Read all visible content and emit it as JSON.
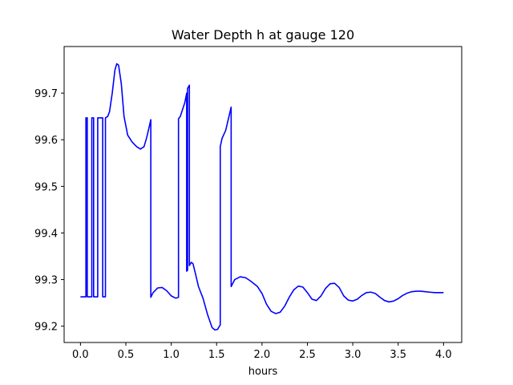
{
  "chart_data": {
    "type": "line",
    "title": "Water Depth h at gauge 120",
    "xlabel": "hours",
    "ylabel": "",
    "xlim": [
      -0.18,
      4.2
    ],
    "ylim": [
      99.165,
      99.8
    ],
    "xticks": [
      0.0,
      0.5,
      1.0,
      1.5,
      2.0,
      2.5,
      3.0,
      3.5,
      4.0
    ],
    "xtick_labels": [
      "0.0",
      "0.5",
      "1.0",
      "1.5",
      "2.0",
      "2.5",
      "3.0",
      "3.5",
      "4.0"
    ],
    "yticks": [
      99.2,
      99.3,
      99.4,
      99.5,
      99.6,
      99.7
    ],
    "ytick_labels": [
      "99.2",
      "99.3",
      "99.4",
      "99.5",
      "99.6",
      "99.7"
    ],
    "grid": false,
    "legend": "none",
    "series": [
      {
        "color": "#0000ff",
        "points": [
          [
            0.0,
            99.263
          ],
          [
            0.06,
            99.263
          ],
          [
            0.06,
            99.647
          ],
          [
            0.075,
            99.647
          ],
          [
            0.075,
            99.263
          ],
          [
            0.125,
            99.263
          ],
          [
            0.125,
            99.647
          ],
          [
            0.145,
            99.647
          ],
          [
            0.145,
            99.263
          ],
          [
            0.19,
            99.263
          ],
          [
            0.19,
            99.647
          ],
          [
            0.245,
            99.647
          ],
          [
            0.245,
            99.263
          ],
          [
            0.275,
            99.263
          ],
          [
            0.275,
            99.647
          ],
          [
            0.3,
            99.65
          ],
          [
            0.32,
            99.66
          ],
          [
            0.35,
            99.7
          ],
          [
            0.38,
            99.75
          ],
          [
            0.4,
            99.763
          ],
          [
            0.42,
            99.76
          ],
          [
            0.45,
            99.72
          ],
          [
            0.48,
            99.65
          ],
          [
            0.52,
            99.61
          ],
          [
            0.57,
            99.595
          ],
          [
            0.62,
            99.585
          ],
          [
            0.66,
            99.58
          ],
          [
            0.7,
            99.585
          ],
          [
            0.73,
            99.605
          ],
          [
            0.76,
            99.63
          ],
          [
            0.775,
            99.643
          ],
          [
            0.775,
            99.262
          ],
          [
            0.8,
            99.272
          ],
          [
            0.85,
            99.282
          ],
          [
            0.9,
            99.283
          ],
          [
            0.95,
            99.276
          ],
          [
            1.0,
            99.265
          ],
          [
            1.05,
            99.26
          ],
          [
            1.08,
            99.262
          ],
          [
            1.08,
            99.645
          ],
          [
            1.1,
            99.65
          ],
          [
            1.15,
            99.68
          ],
          [
            1.17,
            99.7
          ],
          [
            1.17,
            99.318
          ],
          [
            1.18,
            99.32
          ],
          [
            1.18,
            99.71
          ],
          [
            1.2,
            99.717
          ],
          [
            1.2,
            99.33
          ],
          [
            1.22,
            99.337
          ],
          [
            1.24,
            99.334
          ],
          [
            1.27,
            99.31
          ],
          [
            1.3,
            99.285
          ],
          [
            1.35,
            99.26
          ],
          [
            1.4,
            99.225
          ],
          [
            1.45,
            99.197
          ],
          [
            1.48,
            99.192
          ],
          [
            1.51,
            99.193
          ],
          [
            1.54,
            99.203
          ],
          [
            1.54,
            99.585
          ],
          [
            1.56,
            99.603
          ],
          [
            1.6,
            99.62
          ],
          [
            1.63,
            99.645
          ],
          [
            1.66,
            99.67
          ],
          [
            1.66,
            99.285
          ],
          [
            1.7,
            99.3
          ],
          [
            1.76,
            99.306
          ],
          [
            1.82,
            99.304
          ],
          [
            1.88,
            99.296
          ],
          [
            1.95,
            99.285
          ],
          [
            2.0,
            99.27
          ],
          [
            2.05,
            99.247
          ],
          [
            2.1,
            99.232
          ],
          [
            2.15,
            99.227
          ],
          [
            2.2,
            99.23
          ],
          [
            2.25,
            99.243
          ],
          [
            2.3,
            99.262
          ],
          [
            2.35,
            99.278
          ],
          [
            2.4,
            99.286
          ],
          [
            2.45,
            99.284
          ],
          [
            2.5,
            99.272
          ],
          [
            2.55,
            99.258
          ],
          [
            2.6,
            99.255
          ],
          [
            2.65,
            99.265
          ],
          [
            2.7,
            99.281
          ],
          [
            2.75,
            99.291
          ],
          [
            2.8,
            99.292
          ],
          [
            2.85,
            99.283
          ],
          [
            2.9,
            99.265
          ],
          [
            2.95,
            99.256
          ],
          [
            3.0,
            99.254
          ],
          [
            3.05,
            99.258
          ],
          [
            3.1,
            99.266
          ],
          [
            3.15,
            99.272
          ],
          [
            3.2,
            99.273
          ],
          [
            3.25,
            99.27
          ],
          [
            3.3,
            99.262
          ],
          [
            3.35,
            99.255
          ],
          [
            3.4,
            99.252
          ],
          [
            3.45,
            99.254
          ],
          [
            3.5,
            99.259
          ],
          [
            3.55,
            99.266
          ],
          [
            3.6,
            99.271
          ],
          [
            3.65,
            99.274
          ],
          [
            3.7,
            99.275
          ],
          [
            3.75,
            99.275
          ],
          [
            3.8,
            99.274
          ],
          [
            3.85,
            99.273
          ],
          [
            3.9,
            99.272
          ],
          [
            4.0,
            99.272
          ]
        ]
      }
    ]
  }
}
